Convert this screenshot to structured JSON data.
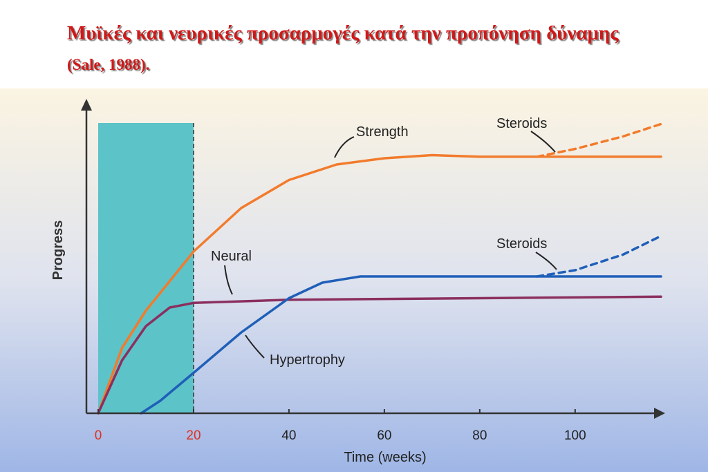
{
  "chart_data": {
    "type": "line",
    "title": "Μυϊκές και νευρικές προσαρμογές κατά την προπόνηση δύναμης",
    "source": "(Sale, 1988).",
    "x_label": "Time (weeks)",
    "y_label": "Progress",
    "xlim": [
      0,
      118
    ],
    "ylim": [
      0,
      100
    ],
    "xticks": [
      0,
      20,
      40,
      60,
      80,
      100
    ],
    "xtick_colors": [
      "#e0301e",
      "#e0301e",
      "#222222",
      "#222222",
      "#222222",
      "#222222"
    ],
    "highlight": {
      "x": [
        0,
        20
      ],
      "color": "#5cc3c9"
    },
    "series": [
      {
        "name": "Strength",
        "color": "#f27b2c",
        "dashed": false,
        "x": [
          0,
          5,
          10,
          20,
          30,
          40,
          50,
          60,
          70,
          80,
          100,
          118
        ],
        "values": [
          0,
          21,
          33,
          52,
          66,
          75,
          80,
          82,
          83,
          82.5,
          82.5,
          82.5
        ]
      },
      {
        "name": "Neural",
        "color": "#8b2f5f",
        "dashed": false,
        "x": [
          0,
          5,
          10,
          15,
          20,
          40,
          80,
          118
        ],
        "values": [
          0,
          17,
          28,
          34,
          35.5,
          36.5,
          37,
          37.5
        ]
      },
      {
        "name": "Hypertrophy",
        "color": "#1f5fb8",
        "dashed": false,
        "x": [
          9,
          13,
          20,
          30,
          40,
          47,
          55,
          80,
          118
        ],
        "values": [
          0,
          4,
          13,
          26,
          37,
          42,
          44,
          44,
          44
        ]
      },
      {
        "name": "Steroids",
        "color": "#f27b2c",
        "dashed": true,
        "x": [
          92,
          100,
          110,
          118
        ],
        "values": [
          82.5,
          85,
          89,
          93
        ]
      },
      {
        "name": "Steroids",
        "color": "#1f5fb8",
        "dashed": true,
        "x": [
          92,
          100,
          110,
          118
        ],
        "values": [
          44,
          46,
          51,
          57
        ]
      }
    ]
  }
}
